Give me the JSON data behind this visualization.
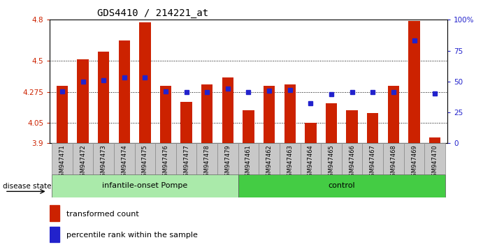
{
  "title": "GDS4410 / 214221_at",
  "samples": [
    "GSM947471",
    "GSM947472",
    "GSM947473",
    "GSM947474",
    "GSM947475",
    "GSM947476",
    "GSM947477",
    "GSM947478",
    "GSM947479",
    "GSM947461",
    "GSM947462",
    "GSM947463",
    "GSM947464",
    "GSM947465",
    "GSM947466",
    "GSM947467",
    "GSM947468",
    "GSM947469",
    "GSM947470"
  ],
  "bar_values": [
    4.32,
    4.51,
    4.57,
    4.65,
    4.78,
    4.32,
    4.2,
    4.33,
    4.38,
    4.14,
    4.32,
    4.33,
    4.05,
    4.19,
    4.14,
    4.12,
    4.32,
    4.79,
    3.94
  ],
  "blue_values": [
    4.28,
    4.35,
    4.36,
    4.38,
    4.38,
    4.28,
    4.275,
    4.275,
    4.3,
    4.275,
    4.285,
    4.29,
    4.19,
    4.26,
    4.275,
    4.275,
    4.275,
    4.65,
    4.265
  ],
  "group1_count": 9,
  "group2_count": 10,
  "group1_label": "infantile-onset Pompe",
  "group2_label": "control",
  "group_label": "disease state",
  "y_min": 3.9,
  "y_max": 4.8,
  "y_ticks": [
    3.9,
    4.05,
    4.275,
    4.5,
    4.8
  ],
  "y_tick_labels": [
    "3.9",
    "4.05",
    "4.275",
    "4.5",
    "4.8"
  ],
  "right_y_ticks": [
    0,
    25,
    50,
    75,
    100
  ],
  "right_y_labels": [
    "0",
    "25",
    "50",
    "75",
    "100%"
  ],
  "bar_color": "#cc2200",
  "blue_color": "#2222cc",
  "tick_box_color": "#c8c8c8",
  "group1_bg": "#aaeaaa",
  "group2_bg": "#44cc44",
  "dotted_line_vals": [
    4.5,
    4.275,
    4.05
  ],
  "legend_items": [
    "transformed count",
    "percentile rank within the sample"
  ]
}
